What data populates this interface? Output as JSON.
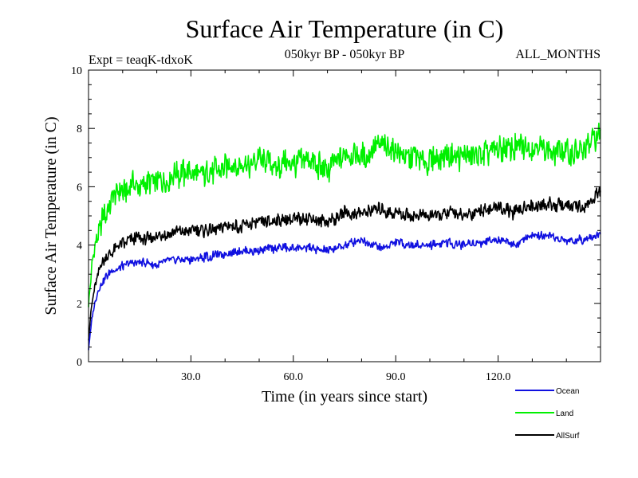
{
  "chart_data": {
    "type": "line",
    "title": "Surface Air Temperature (in C)",
    "subtitle": "050kyr BP - 050kyr BP",
    "left_note": "Expt = teaqK-tdxoK",
    "right_note": "ALL_MONTHS",
    "xlabel": "Time (in years since start)",
    "ylabel": "Surface Air Temperature (in C)",
    "xlim": [
      0,
      150
    ],
    "ylim": [
      0,
      10
    ],
    "xticks": [
      30,
      60,
      90,
      120
    ],
    "xtick_labels": [
      "30.0",
      "60.0",
      "90.0",
      "120.0"
    ],
    "yticks": [
      0,
      2,
      4,
      6,
      8,
      10
    ],
    "ytick_labels": [
      "0",
      "2",
      "4",
      "6",
      "8",
      "10"
    ],
    "grid": false,
    "legend_position": "bottom-right",
    "series": [
      {
        "name": "Ocean",
        "color": "#1010e0",
        "x": [
          0,
          1,
          2,
          3,
          4,
          5,
          7,
          10,
          13,
          16,
          20,
          25,
          30,
          35,
          40,
          45,
          50,
          55,
          60,
          65,
          70,
          75,
          80,
          85,
          90,
          95,
          100,
          105,
          110,
          115,
          120,
          125,
          130,
          135,
          140,
          145,
          150
        ],
        "values": [
          0.4,
          1.5,
          2.1,
          2.5,
          2.7,
          2.9,
          3.1,
          3.3,
          3.4,
          3.4,
          3.3,
          3.5,
          3.5,
          3.6,
          3.7,
          3.8,
          3.8,
          3.9,
          3.9,
          3.9,
          3.8,
          4.0,
          4.2,
          3.9,
          4.1,
          4.0,
          4.0,
          4.1,
          4.0,
          4.1,
          4.2,
          4.0,
          4.3,
          4.3,
          4.1,
          4.2,
          4.4
        ]
      },
      {
        "name": "Land",
        "color": "#00f000",
        "x": [
          0,
          1,
          2,
          3,
          4,
          5,
          7,
          10,
          13,
          16,
          20,
          25,
          30,
          35,
          40,
          45,
          50,
          55,
          60,
          65,
          70,
          75,
          80,
          85,
          90,
          95,
          100,
          105,
          110,
          115,
          120,
          125,
          130,
          135,
          140,
          145,
          150
        ],
        "values": [
          2.0,
          3.3,
          4.0,
          4.4,
          4.9,
          5.0,
          5.6,
          5.8,
          6.1,
          6.1,
          6.2,
          6.4,
          6.5,
          6.4,
          6.8,
          6.6,
          7.0,
          6.7,
          6.8,
          6.9,
          6.5,
          7.1,
          7.0,
          7.4,
          7.2,
          7.0,
          6.9,
          7.1,
          7.0,
          7.1,
          7.3,
          7.3,
          7.4,
          7.2,
          7.2,
          7.2,
          7.9
        ]
      },
      {
        "name": "AllSurf",
        "color": "#000000",
        "x": [
          0,
          1,
          2,
          3,
          4,
          5,
          7,
          10,
          13,
          16,
          20,
          25,
          30,
          35,
          40,
          45,
          50,
          55,
          60,
          65,
          70,
          75,
          80,
          85,
          90,
          95,
          100,
          105,
          110,
          115,
          120,
          125,
          130,
          135,
          140,
          145,
          150
        ],
        "values": [
          0.8,
          2.0,
          2.7,
          3.1,
          3.4,
          3.6,
          3.8,
          4.0,
          4.2,
          4.2,
          4.3,
          4.4,
          4.5,
          4.5,
          4.7,
          4.6,
          4.8,
          4.8,
          4.9,
          4.9,
          4.8,
          5.1,
          5.1,
          5.2,
          5.1,
          5.0,
          5.0,
          5.1,
          5.0,
          5.2,
          5.3,
          5.1,
          5.4,
          5.4,
          5.3,
          5.3,
          5.8
        ]
      }
    ]
  }
}
